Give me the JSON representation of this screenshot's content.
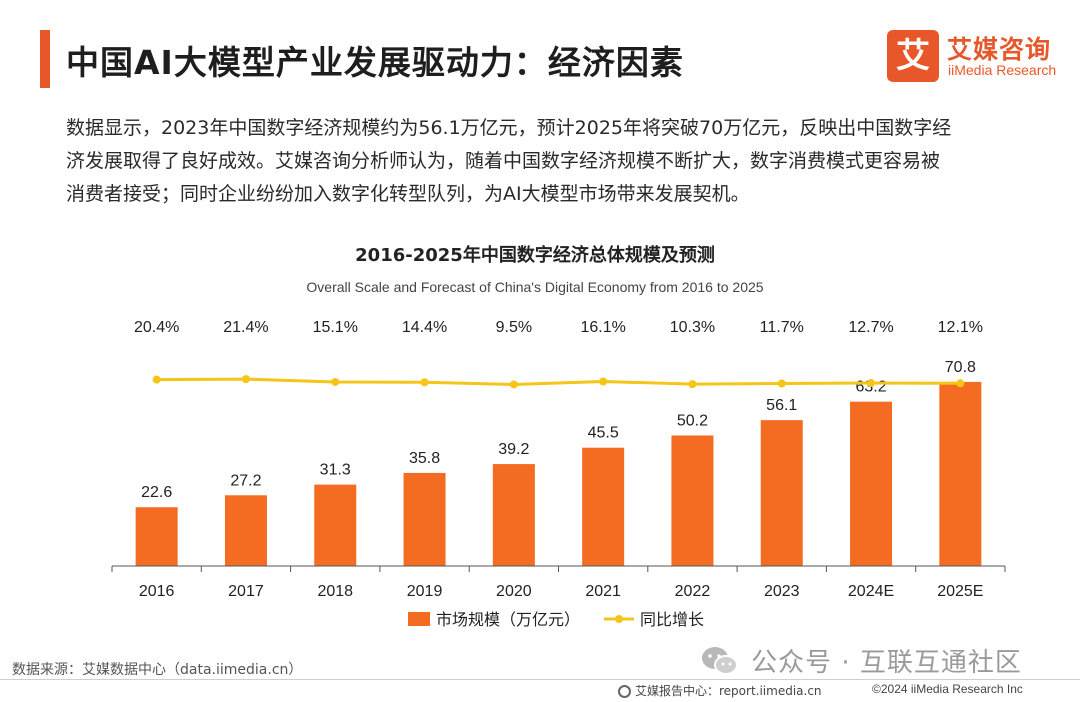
{
  "header": {
    "title": "中国AI大模型产业发展驱动力：经济因素",
    "logo_mark": "艾",
    "logo_cn": "艾媒咨询",
    "logo_en": "iiMedia Research"
  },
  "paragraph": {
    "line1": "数据显示，2023年中国数字经济规模约为56.1万亿元，预计2025年将突破70万亿元，反映出中国数字经",
    "line2": "济发展取得了良好成效。艾媒咨询分析师认为，随着中国数字经济规模不断扩大，数字消费模式更容易被",
    "line3": "消费者接受；同时企业纷纷加入数字化转型队列，为AI大模型市场带来发展契机。"
  },
  "chart_data": {
    "type": "bar",
    "title": "2016-2025年中国数字经济总体规模及预测",
    "subtitle": "Overall Scale and Forecast of China's Digital Economy from 2016 to 2025",
    "categories": [
      "2016",
      "2017",
      "2018",
      "2019",
      "2020",
      "2021",
      "2022",
      "2023",
      "2024E",
      "2025E"
    ],
    "series": [
      {
        "name": "市场规模（万亿元）",
        "type": "bar",
        "color": "#f36c21",
        "values": [
          22.6,
          27.2,
          31.3,
          35.8,
          39.2,
          45.5,
          50.2,
          56.1,
          63.2,
          70.8
        ],
        "labels": [
          "22.6",
          "27.2",
          "31.3",
          "35.8",
          "39.2",
          "45.5",
          "50.2",
          "56.1",
          "63.2",
          "70.8"
        ]
      },
      {
        "name": "同比增长",
        "type": "line",
        "color": "#f5c518",
        "values": [
          20.4,
          21.4,
          15.1,
          14.4,
          9.5,
          16.1,
          10.3,
          11.7,
          12.7,
          12.1
        ],
        "labels": [
          "20.4%",
          "21.4%",
          "15.1%",
          "14.4%",
          "9.5%",
          "16.1%",
          "10.3%",
          "11.7%",
          "12.7%",
          "12.1%"
        ]
      }
    ],
    "ylim": [
      0,
      75
    ],
    "grid": false,
    "legend_position": "bottom"
  },
  "footer": {
    "source": "数据来源：艾媒数据中心（data.iimedia.cn）",
    "watermark": "公众号 · 互联互通社区",
    "report_site": "艾媒报告中心：report.iimedia.cn",
    "copyright": "©2024  iiMedia Research  Inc"
  }
}
